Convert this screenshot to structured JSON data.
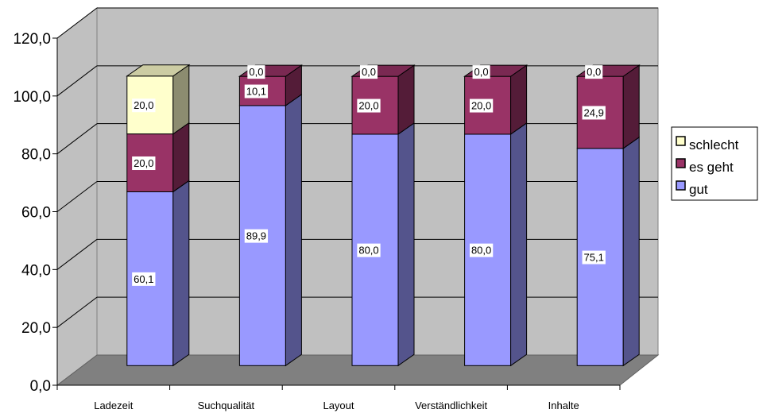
{
  "chart_data": {
    "type": "bar",
    "stacked": true,
    "three_d": true,
    "categories": [
      "Ladezeit",
      "Suchqualität",
      "Layout",
      "Verständlichkeit",
      "Inhalte"
    ],
    "series": [
      {
        "name": "gut",
        "values": [
          60.1,
          89.9,
          80.0,
          80.0,
          75.1
        ],
        "labels": [
          "60,1",
          "89,9",
          "80,0",
          "80,0",
          "75,1"
        ],
        "color": "#9999ff"
      },
      {
        "name": "es geht",
        "values": [
          20.0,
          10.1,
          20.0,
          20.0,
          24.9
        ],
        "labels": [
          "20,0",
          "10,1",
          "20,0",
          "20,0",
          "24,9"
        ],
        "color": "#993366"
      },
      {
        "name": "schlecht",
        "values": [
          20.0,
          0.0,
          0.0,
          0.0,
          0.0
        ],
        "labels": [
          "20,0",
          "0,0",
          "0,0",
          "0,0",
          "0,0"
        ],
        "color": "#ffffcc"
      }
    ],
    "ylim": [
      0,
      120
    ],
    "yticks": [
      0,
      20,
      40,
      60,
      80,
      100,
      120
    ],
    "ytick_labels": [
      "0,0",
      "20,0",
      "40,0",
      "60,0",
      "80,0",
      "100,0",
      "120,0"
    ],
    "grid": true,
    "legend_position": "right",
    "title": "",
    "xlabel": "",
    "ylabel": ""
  }
}
